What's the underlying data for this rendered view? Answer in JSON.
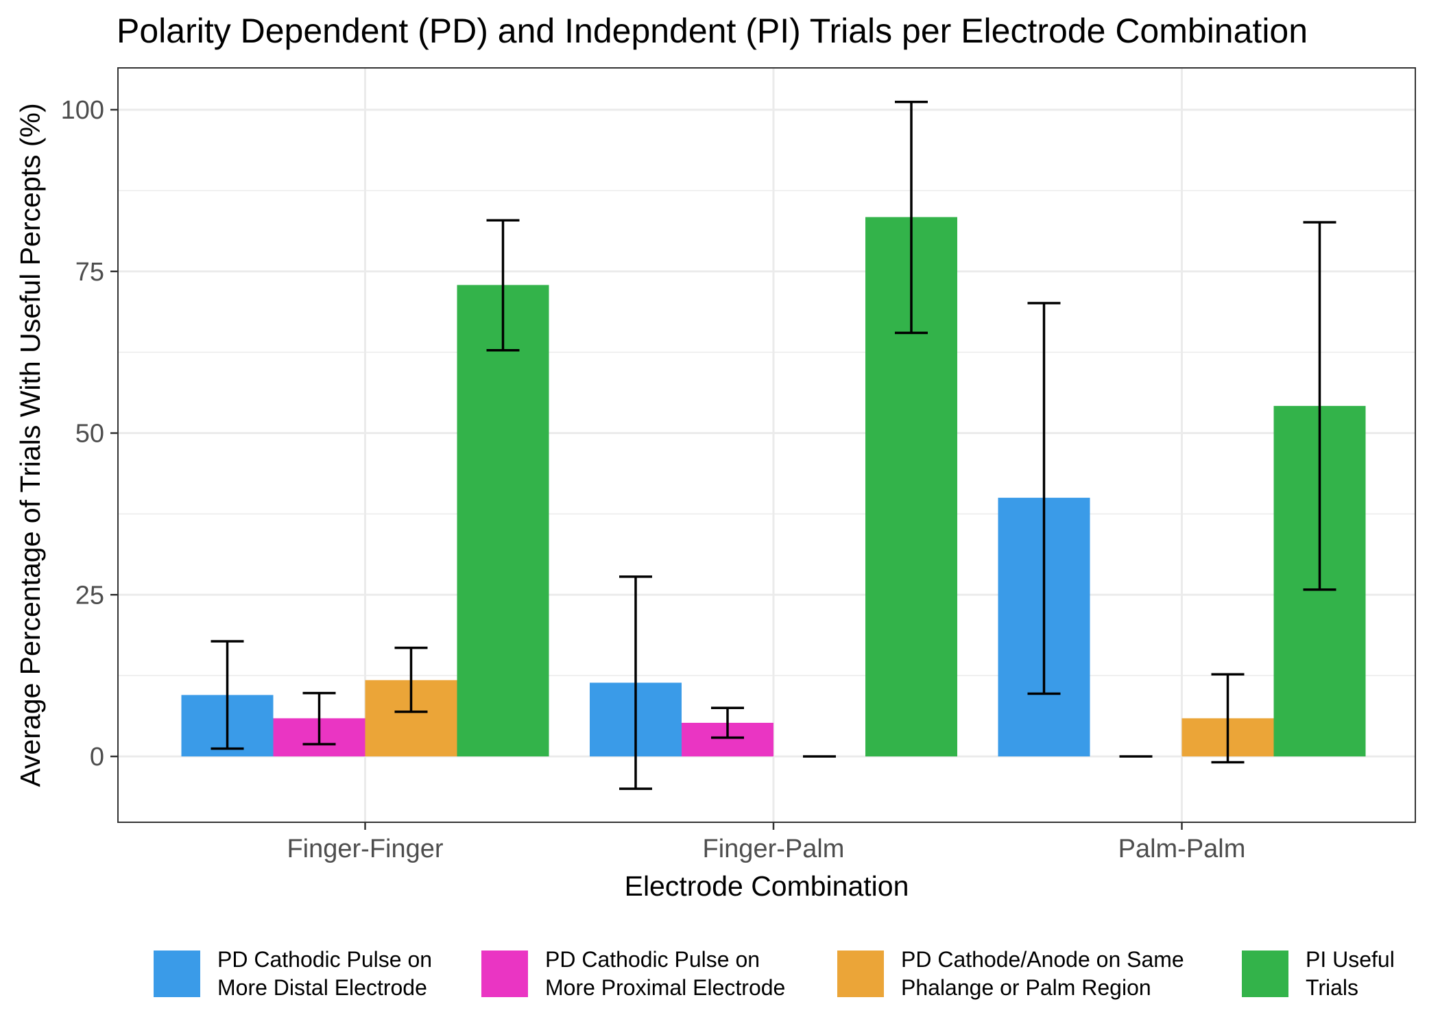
{
  "chart_data": {
    "type": "bar",
    "title": "Polarity Dependent (PD) and Indepndent (PI) Trials per Electrode Combination",
    "xlabel": "Electrode Combination",
    "ylabel": "Average Percentage of Trials With Useful Percepts (%)",
    "ylim": [
      -10,
      106.5
    ],
    "yticks": [
      0,
      25,
      50,
      75,
      100
    ],
    "ytick_labels": [
      "0",
      "25",
      "50",
      "75",
      "100"
    ],
    "grid": true,
    "legend_position": "bottom",
    "categories": [
      "Finger-Finger",
      "Finger-Palm",
      "Palm-Palm"
    ],
    "series": [
      {
        "name": "PD Cathodic Pulse on More Distal Electrode",
        "legend_lines": [
          "PD Cathodic Pulse on",
          "More Distal Electrode"
        ],
        "color": "#3a9be8",
        "values": [
          9.5,
          11.4,
          40.0
        ],
        "err_low": [
          1.2,
          -5.0,
          9.7
        ],
        "err_high": [
          17.8,
          27.8,
          70.1
        ]
      },
      {
        "name": "PD Cathodic Pulse on More Proximal Electrode",
        "legend_lines": [
          "PD Cathodic Pulse on",
          "More Proximal Electrode"
        ],
        "color": "#ea35c3",
        "values": [
          5.9,
          5.2,
          0.0
        ],
        "err_low": [
          1.9,
          2.9,
          0.0
        ],
        "err_high": [
          9.8,
          7.5,
          0.0
        ]
      },
      {
        "name": "PD Cathode/Anode on Same Phalange or Palm Region",
        "legend_lines": [
          "PD Cathode/Anode on Same",
          "Phalange or Palm Region"
        ],
        "color": "#eba538",
        "values": [
          11.8,
          0.0,
          5.9
        ],
        "err_low": [
          6.9,
          0.0,
          -0.9
        ],
        "err_high": [
          16.8,
          0.0,
          12.7
        ]
      },
      {
        "name": "PI Useful Trials",
        "legend_lines": [
          "PI Useful",
          "Trials"
        ],
        "color": "#33b34a",
        "values": [
          72.9,
          83.4,
          54.2
        ],
        "err_low": [
          62.8,
          65.5,
          25.8
        ],
        "err_high": [
          82.9,
          101.2,
          82.6
        ]
      }
    ]
  }
}
